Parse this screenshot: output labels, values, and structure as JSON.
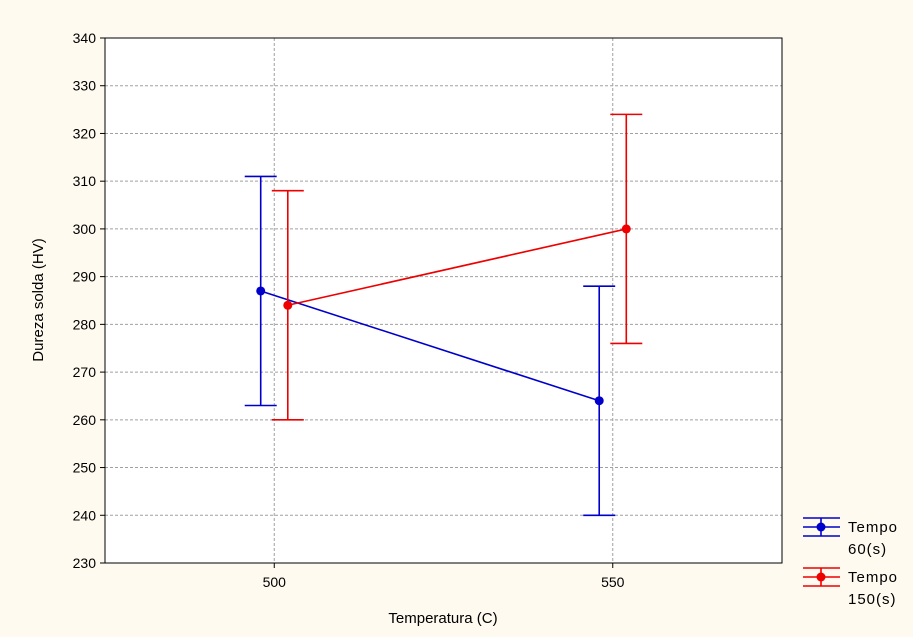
{
  "chart_data": {
    "type": "line",
    "xlabel": "Temperatura (C)",
    "ylabel": "Dureza solda (HV)",
    "x": [
      500,
      550
    ],
    "xlim": [
      475,
      575
    ],
    "xticks": [
      500,
      550
    ],
    "ylim": [
      230,
      340
    ],
    "yticks": [
      230,
      240,
      250,
      260,
      270,
      280,
      290,
      300,
      310,
      320,
      330,
      340
    ],
    "grid": true,
    "legend_position": "bottom-right",
    "series": [
      {
        "name_line1": "Tempo",
        "name_line2": "60(s)",
        "color": "#0000cc",
        "x_offset": -4,
        "values": [
          287,
          264
        ],
        "lower": [
          263,
          240
        ],
        "upper": [
          311,
          288
        ]
      },
      {
        "name_line1": "Tempo",
        "name_line2": "150(s)",
        "color": "#ee0000",
        "x_offset": 4,
        "values": [
          284,
          300
        ],
        "lower": [
          260,
          276
        ],
        "upper": [
          308,
          324
        ]
      }
    ]
  }
}
